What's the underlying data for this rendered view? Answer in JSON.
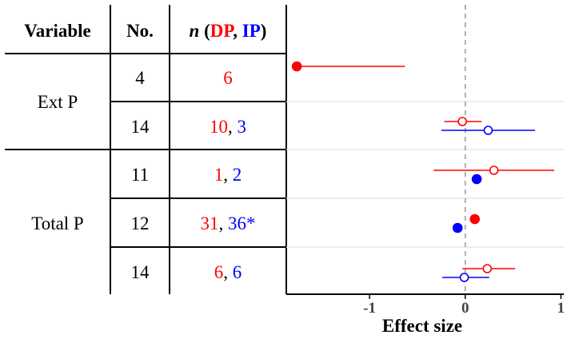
{
  "table": {
    "headers": {
      "variable": "Variable",
      "no": "No.",
      "n_prefix": "n",
      "n_open": " (",
      "n_dp": "DP",
      "n_comma": ", ",
      "n_ip": "IP",
      "n_close": ")"
    },
    "rows": [
      {
        "variable": "Ext P",
        "no": "4",
        "dp": "6",
        "sep": "",
        "ip": ""
      },
      {
        "variable": "",
        "no": "14",
        "dp": "10",
        "sep": ", ",
        "ip": "3"
      },
      {
        "variable": "Total P",
        "no": "11",
        "dp": "1",
        "sep": ", ",
        "ip": "2"
      },
      {
        "variable": "",
        "no": "12",
        "dp": "31",
        "sep": ", ",
        "ip": "36*"
      },
      {
        "variable": "",
        "no": "14",
        "dp": "6",
        "sep": ", ",
        "ip": "6"
      }
    ]
  },
  "chart_data": {
    "type": "scatter",
    "xlabel": "Effect size",
    "xlim": [
      -1.87,
      1.03
    ],
    "ticks": [
      "-1",
      "0",
      "1"
    ],
    "reference_line": 0,
    "grid": "horizontal row separators",
    "colors": {
      "DP": "#ff0000",
      "IP": "#0000ff"
    },
    "points": [
      {
        "row": 0,
        "group": "DP",
        "estimate": -1.76,
        "lower": -1.76,
        "upper": -0.63,
        "filled": true
      },
      {
        "row": 1,
        "group": "DP",
        "estimate": -0.03,
        "lower": -0.22,
        "upper": 0.17,
        "filled": false
      },
      {
        "row": 1,
        "group": "IP",
        "estimate": 0.24,
        "lower": -0.25,
        "upper": 0.73,
        "filled": false
      },
      {
        "row": 2,
        "group": "DP",
        "estimate": 0.3,
        "lower": -0.33,
        "upper": 0.93,
        "filled": false
      },
      {
        "row": 2,
        "group": "IP",
        "estimate": 0.12,
        "lower": 0.12,
        "upper": 0.12,
        "filled": true
      },
      {
        "row": 3,
        "group": "DP",
        "estimate": 0.1,
        "lower": 0.1,
        "upper": 0.1,
        "filled": true
      },
      {
        "row": 3,
        "group": "IP",
        "estimate": -0.08,
        "lower": -0.08,
        "upper": -0.08,
        "filled": true
      },
      {
        "row": 4,
        "group": "DP",
        "estimate": 0.23,
        "lower": -0.03,
        "upper": 0.52,
        "filled": false
      },
      {
        "row": 4,
        "group": "IP",
        "estimate": -0.01,
        "lower": -0.24,
        "upper": 0.25,
        "filled": false
      }
    ]
  }
}
